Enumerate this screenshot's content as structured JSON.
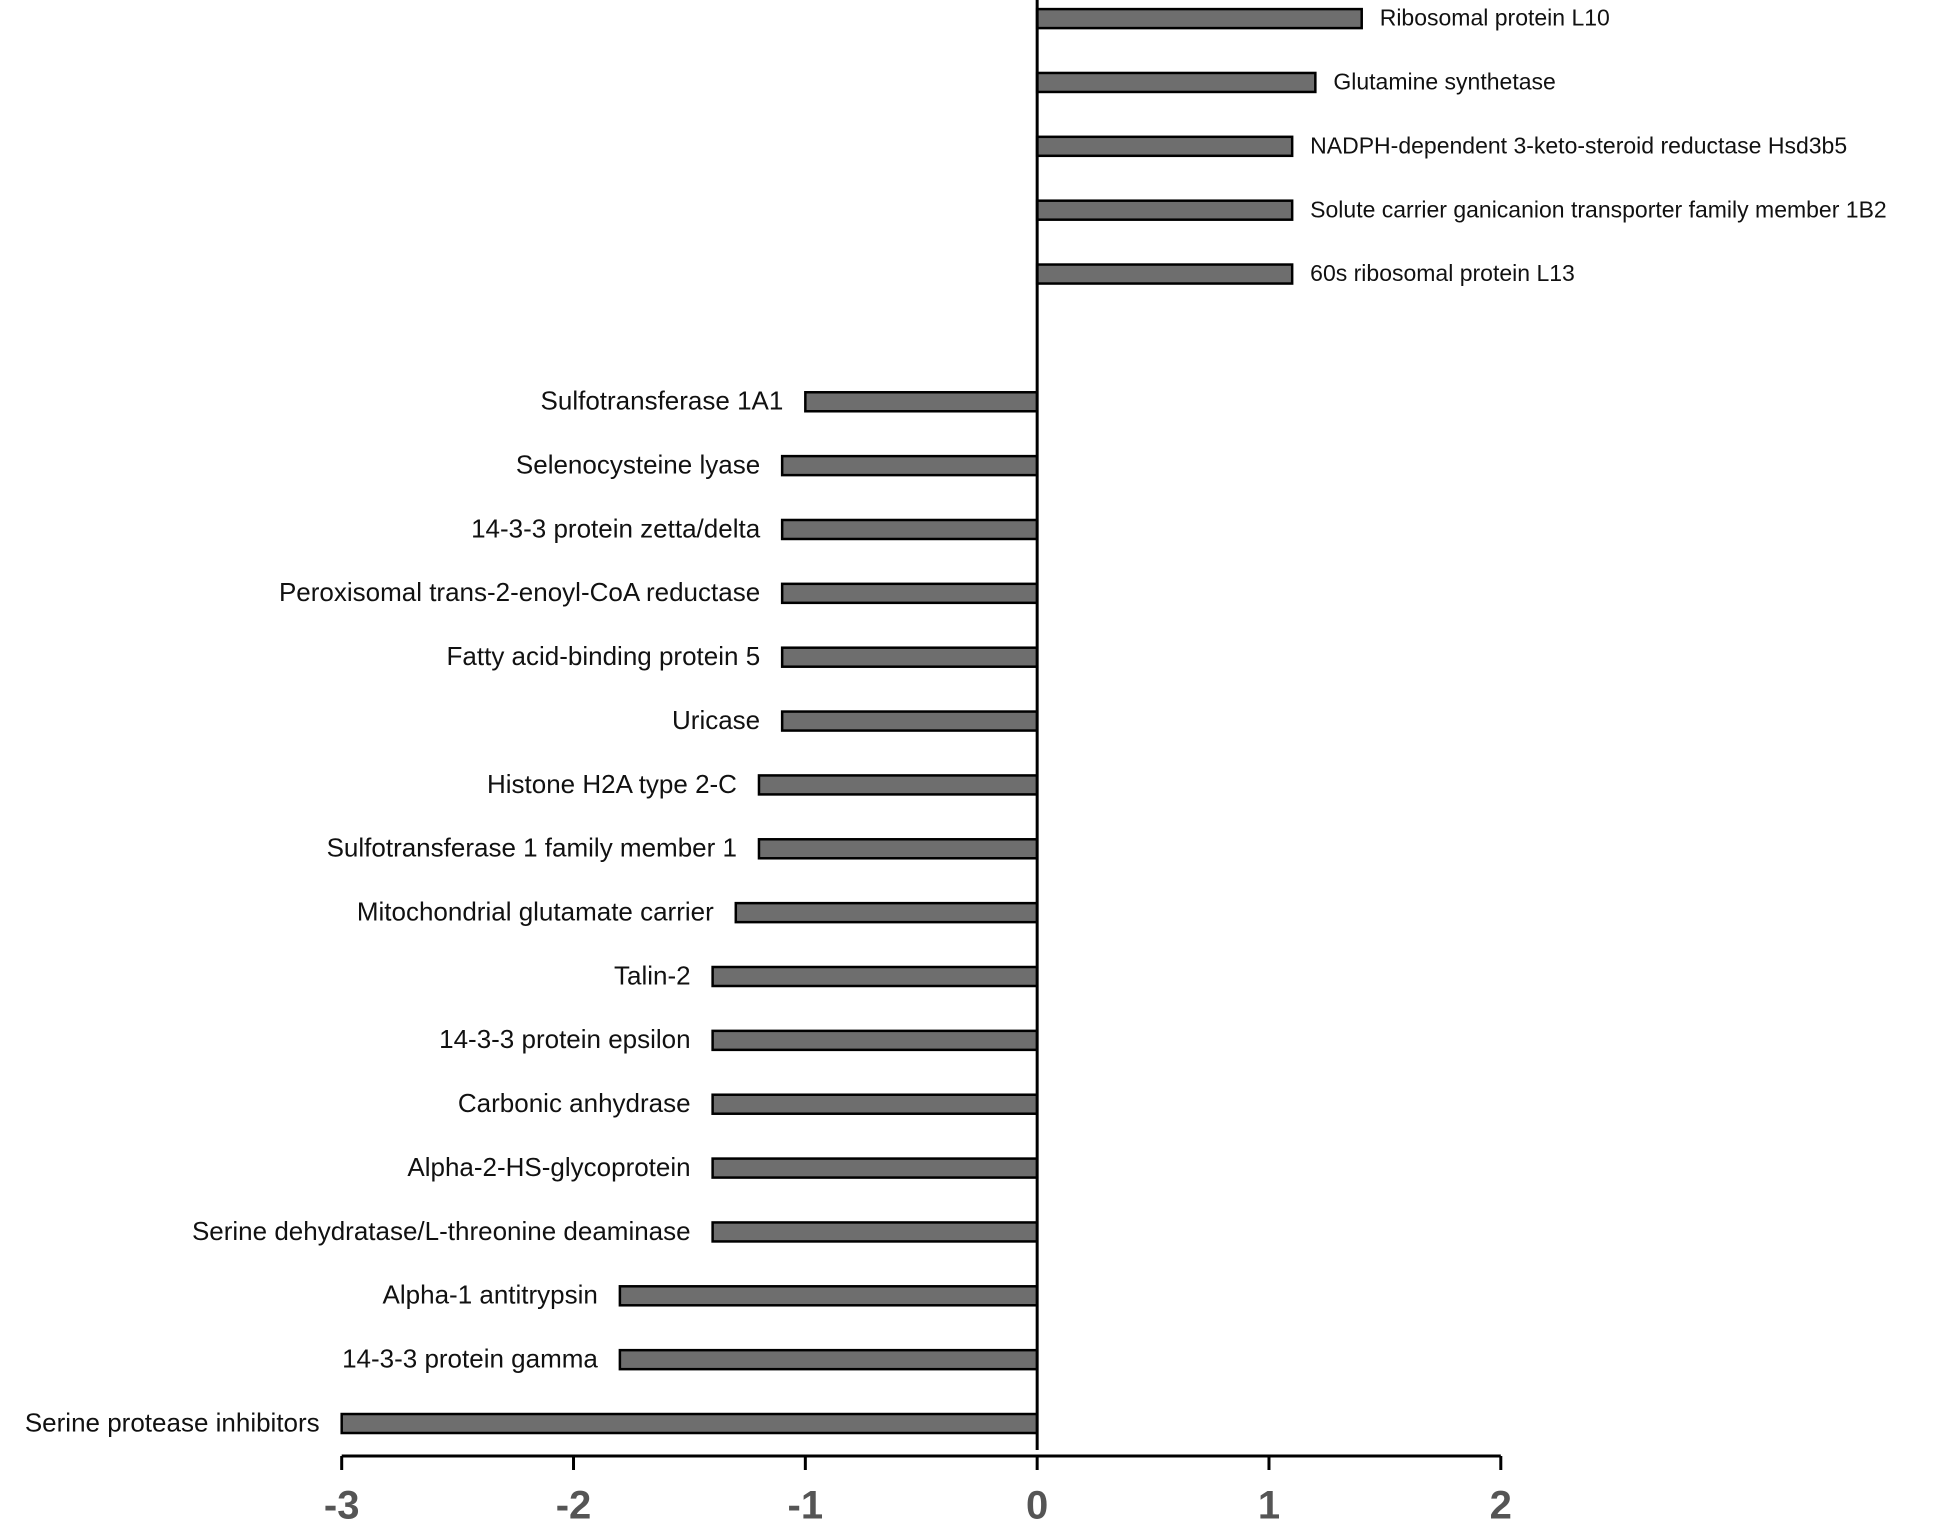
{
  "chart_data": {
    "type": "hbar",
    "categories": [
      "Ribosomal protein L10",
      "Glutamine synthetase",
      "NADPH-dependent 3-keto-steroid reductase Hsd3b5",
      "Solute carrier ganicanion transporter family member 1B2",
      "60s ribosomal protein L13",
      null,
      "Sulfotransferase 1A1",
      "Selenocysteine lyase",
      "14-3-3 protein zetta/delta",
      "Peroxisomal trans-2-enoyl-CoA reductase",
      "Fatty acid-binding protein 5",
      "Uricase",
      "Histone H2A type 2-C",
      "Sulfotransferase 1 family member 1",
      "Mitochondrial glutamate carrier",
      "Talin-2",
      "14-3-3 protein epsilon",
      "Carbonic anhydrase",
      "Alpha-2-HS-glycoprotein",
      "Serine dehydratase/L-threonine deaminase",
      "Alpha-1 antitrypsin",
      "14-3-3 protein gamma",
      "Serine protease inhibitors"
    ],
    "values": [
      1.4,
      1.2,
      1.1,
      1.1,
      1.1,
      null,
      -1.0,
      -1.1,
      -1.1,
      -1.1,
      -1.1,
      -1.1,
      -1.2,
      -1.2,
      -1.3,
      -1.4,
      -1.4,
      -1.4,
      -1.4,
      -1.4,
      -1.8,
      -1.8,
      -3.0
    ],
    "color": "#6e6e6e",
    "xlim": [
      -3,
      2
    ],
    "xticks": [
      -3,
      -2,
      -1,
      0,
      1,
      2
    ]
  }
}
